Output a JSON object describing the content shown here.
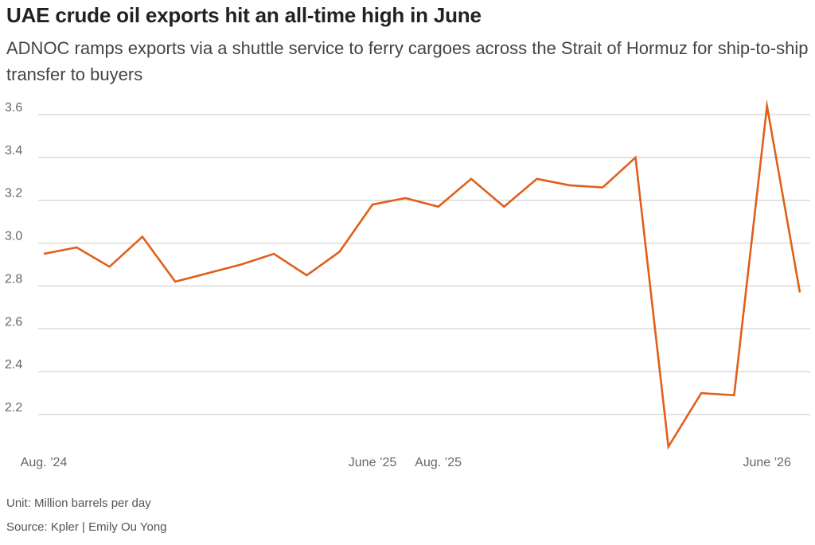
{
  "title": "UAE crude oil exports hit an all-time high in June",
  "subtitle": "ADNOC ramps exports via a shuttle service to ferry cargoes across the Strait of Hormuz for ship-to-ship transfer to buyers",
  "unit_note": "Unit: Million barrels per day",
  "source_note": "Source: Kpler | Emily Ou Yong",
  "colors": {
    "line": "#e05f1c",
    "grid": "#d0d0d0",
    "tick_text": "#666666"
  },
  "chart_data": {
    "type": "line",
    "title": "",
    "xlabel": "",
    "ylabel": "",
    "ylim": [
      2.05,
      3.68
    ],
    "y_ticks": [
      "2.2",
      "2.4",
      "2.6",
      "2.8",
      "3.0",
      "3.2",
      "3.4",
      "3.6"
    ],
    "grid": true,
    "x_tick_labels": [
      {
        "label": "Aug. ’24",
        "index": 0
      },
      {
        "label": "June ’25",
        "index": 10
      },
      {
        "label": "Aug. ’25",
        "index": 12
      },
      {
        "label": "June ’26",
        "index": 22
      }
    ],
    "x": [
      "Aug 2024",
      "Sep 2024",
      "Oct 2024",
      "Nov 2024",
      "Dec 2024",
      "Jan 2025",
      "Feb 2025",
      "Mar 2025",
      "Apr 2025",
      "May 2025",
      "Jun 2025",
      "Jul 2025",
      "Aug 2025",
      "Sep 2025",
      "Oct 2025",
      "Nov 2025",
      "Dec 2025",
      "Jan 2026",
      "Feb 2026",
      "Mar 2026",
      "Apr 2026",
      "May 2026",
      "Jun 2026",
      "Jul 2026"
    ],
    "series": [
      {
        "values": [
          2.95,
          2.98,
          2.89,
          3.03,
          2.82,
          2.86,
          2.9,
          2.95,
          2.85,
          2.96,
          3.18,
          3.21,
          3.17,
          3.3,
          3.17,
          3.3,
          3.27,
          3.26,
          3.4,
          2.05,
          2.3,
          2.29,
          3.64,
          2.77
        ]
      }
    ]
  }
}
